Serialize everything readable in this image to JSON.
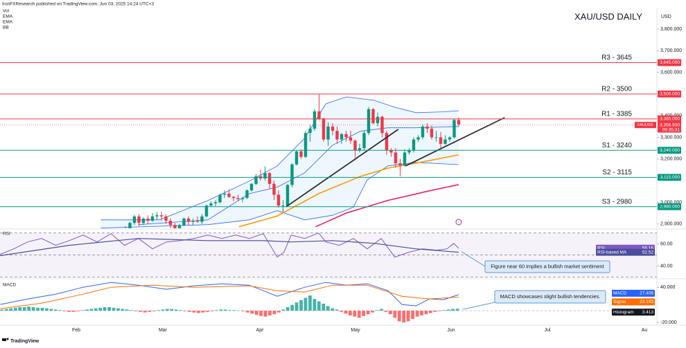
{
  "header": {
    "attribution": "IronFXResearch published on TradingView.com, Jun 03, 2025 14:24 UTC+3",
    "legend": [
      "Vol",
      "EMA",
      "EMA",
      "BB"
    ],
    "footer": "TradingView"
  },
  "chart_data": [
    {
      "type": "candlestick",
      "title": "XAU/USD DAILY",
      "currency": "USD",
      "symbol": "XAUUSD",
      "last_price": {
        "value": 3356.93,
        "label": "3,356.930"
      },
      "countdown": "09:35:31",
      "x_axis_labels": [
        "Feb",
        "Mar",
        "Apr",
        "May",
        "Jun",
        "Jul",
        "Au"
      ],
      "ylim": [
        2880,
        3934
      ],
      "yticks": [
        {
          "value": 3800,
          "label": "3,800.000"
        },
        {
          "value": 3700,
          "label": "3,700.000"
        },
        {
          "value": 3600,
          "label": "3,600.000"
        },
        {
          "value": 3400,
          "label": "3,400.000"
        },
        {
          "value": 3300,
          "label": "3,300.000"
        },
        {
          "value": 3200,
          "label": "3,200.000"
        },
        {
          "value": 3000,
          "label": "3,000.000"
        },
        {
          "value": 2900,
          "label": "2,900.000"
        }
      ],
      "colors": {
        "up": "#089981",
        "down": "#f23645"
      },
      "ohlc": [
        [
          2870,
          2890,
          2860,
          2880
        ],
        [
          2880,
          2910,
          2870,
          2905
        ],
        [
          2905,
          2942,
          2895,
          2935
        ],
        [
          2935,
          2945,
          2890,
          2905
        ],
        [
          2905,
          2930,
          2895,
          2925
        ],
        [
          2925,
          2940,
          2900,
          2915
        ],
        [
          2915,
          2950,
          2910,
          2935
        ],
        [
          2935,
          2955,
          2920,
          2940
        ],
        [
          2940,
          2956,
          2915,
          2935
        ],
        [
          2935,
          2945,
          2900,
          2915
        ],
        [
          2915,
          2925,
          2880,
          2895
        ],
        [
          2895,
          2905,
          2870,
          2880
        ],
        [
          2880,
          2900,
          2860,
          2895
        ],
        [
          2895,
          2930,
          2890,
          2925
        ],
        [
          2925,
          2935,
          2895,
          2910
        ],
        [
          2910,
          2925,
          2895,
          2915
        ],
        [
          2915,
          2935,
          2905,
          2910
        ],
        [
          2910,
          2945,
          2900,
          2935
        ],
        [
          2935,
          2990,
          2930,
          2985
        ],
        [
          2985,
          3005,
          2980,
          2995
        ],
        [
          2995,
          3010,
          2980,
          3000
        ],
        [
          3000,
          3040,
          2995,
          3035
        ],
        [
          3035,
          3055,
          3020,
          3040
        ],
        [
          3040,
          3060,
          3020,
          3025
        ],
        [
          3025,
          3030,
          3005,
          3020
        ],
        [
          3020,
          3035,
          3005,
          3015
        ],
        [
          3015,
          3025,
          3000,
          3020
        ],
        [
          3020,
          3060,
          3015,
          3055
        ],
        [
          3055,
          3090,
          3050,
          3085
        ],
        [
          3085,
          3130,
          3080,
          3120
        ],
        [
          3120,
          3150,
          3100,
          3110
        ],
        [
          3110,
          3165,
          3100,
          3135
        ],
        [
          3135,
          3140,
          3060,
          3085
        ],
        [
          3085,
          3100,
          3010,
          3035
        ],
        [
          3035,
          3055,
          2975,
          2985
        ],
        [
          2985,
          3010,
          2955,
          2985
        ],
        [
          2985,
          3085,
          2980,
          3080
        ],
        [
          3080,
          3180,
          3070,
          3175
        ],
        [
          3175,
          3240,
          3170,
          3235
        ],
        [
          3235,
          3245,
          3200,
          3210
        ],
        [
          3210,
          3330,
          3205,
          3320
        ],
        [
          3320,
          3360,
          3280,
          3340
        ],
        [
          3340,
          3430,
          3330,
          3420
        ],
        [
          3420,
          3500,
          3380,
          3385
        ],
        [
          3385,
          3390,
          3280,
          3290
        ],
        [
          3290,
          3370,
          3260,
          3350
        ],
        [
          3350,
          3365,
          3310,
          3330
        ],
        [
          3330,
          3350,
          3270,
          3290
        ],
        [
          3290,
          3320,
          3270,
          3315
        ],
        [
          3315,
          3330,
          3280,
          3300
        ],
        [
          3300,
          3330,
          3270,
          3285
        ],
        [
          3285,
          3290,
          3205,
          3240
        ],
        [
          3240,
          3270,
          3230,
          3250
        ],
        [
          3250,
          3330,
          3240,
          3320
        ],
        [
          3320,
          3440,
          3310,
          3430
        ],
        [
          3430,
          3435,
          3360,
          3365
        ],
        [
          3365,
          3415,
          3350,
          3395
        ],
        [
          3395,
          3400,
          3300,
          3320
        ],
        [
          3320,
          3330,
          3220,
          3240
        ],
        [
          3240,
          3250,
          3210,
          3230
        ],
        [
          3230,
          3250,
          3160,
          3180
        ],
        [
          3180,
          3200,
          3120,
          3170
        ],
        [
          3170,
          3245,
          3165,
          3230
        ],
        [
          3230,
          3250,
          3220,
          3240
        ],
        [
          3240,
          3300,
          3230,
          3290
        ],
        [
          3290,
          3310,
          3280,
          3300
        ],
        [
          3300,
          3360,
          3290,
          3350
        ],
        [
          3350,
          3365,
          3320,
          3340
        ],
        [
          3340,
          3355,
          3290,
          3300
        ],
        [
          3300,
          3330,
          3280,
          3300
        ],
        [
          3300,
          3325,
          3250,
          3270
        ],
        [
          3270,
          3310,
          3265,
          3290
        ],
        [
          3290,
          3305,
          3280,
          3300
        ],
        [
          3300,
          3385,
          3295,
          3380
        ],
        [
          3380,
          3392,
          3350,
          3360
        ]
      ],
      "levels": [
        {
          "label": "R3 - 3645",
          "value": 3645,
          "value_label": "3,645.000",
          "color": "#f23645"
        },
        {
          "label": "R2 - 3500",
          "value": 3500,
          "value_label": "3,500.000",
          "color": "#f23645"
        },
        {
          "label": "R1 - 3385",
          "value": 3385,
          "value_label": "3,385.000",
          "color": "#f23645"
        },
        {
          "label": "S1 - 3240",
          "value": 3240,
          "value_label": "3,240.000",
          "color": "#089981"
        },
        {
          "label": "S2 - 3115",
          "value": 3115,
          "value_label": "3,115.000",
          "color": "#089981"
        },
        {
          "label": "S3 - 2980",
          "value": 2980,
          "value_label": "2,980.000",
          "color": "#089981"
        }
      ],
      "bands": {
        "color": "#2962ff",
        "fill": "#2196f3",
        "upper": {
          "x": [
            -5.5,
            7.5,
            18.3,
            27.5,
            33.7,
            39.8,
            44.5,
            49.1,
            55.2,
            59.8,
            64.5,
            70.6,
            74
          ],
          "values": [
            2919,
            2919,
            3008,
            3098,
            3168,
            3296,
            3455,
            3487,
            3471,
            3439,
            3414,
            3418,
            3423
          ]
        },
        "middle": {
          "x": [
            2.9,
            18.3,
            27.5,
            33.7,
            39.8,
            46,
            52.2,
            58.3,
            64.5,
            74
          ],
          "values": [
            2897,
            2919,
            3040,
            3070,
            3136,
            3264,
            3328,
            3344,
            3344,
            3350
          ]
        },
        "lower": {
          "x": [
            -5.5,
            18.3,
            27.5,
            33.7,
            39.8,
            46,
            50.6,
            53.7,
            58.3,
            64.5,
            74
          ],
          "values": [
            2881,
            2897,
            2919,
            2961,
            2919,
            2940,
            2977,
            3104,
            3168,
            3184,
            3174
          ]
        }
      },
      "overlays": [
        {
          "color": "#ff9800",
          "x": [
            25.2,
            33.7,
            42.9,
            52.2,
            58.3,
            64.5,
            74
          ],
          "values": [
            2887,
            2937,
            3040,
            3120,
            3158,
            3181,
            3219
          ]
        },
        {
          "color": "#e91e63",
          "x": [
            42.2,
            49.1,
            58.3,
            67.5,
            74
          ],
          "values": [
            2887,
            2951,
            3009,
            3053,
            3082
          ]
        }
      ],
      "trendlines": [
        {
          "color": "#2a2e39",
          "x": [
            35.7,
            60.6
          ],
          "values": [
            2980,
            3337
          ]
        },
        {
          "color": "#2a2e39",
          "x": [
            62.2,
            84.2
          ],
          "values": [
            3168,
            3391
          ]
        }
      ]
    },
    {
      "type": "line",
      "title": "RSI",
      "ylim": [
        29,
        73
      ],
      "yticks": [
        {
          "value": 60,
          "label": "60.00"
        },
        {
          "value": 40,
          "label": "40.00"
        }
      ],
      "guides": [
        70,
        50,
        30
      ],
      "annotation": "Figure near 60 implies a bullish market sentiment",
      "series": [
        {
          "name": "RSI",
          "color": "#7e57c2",
          "x": [
            -27.8,
            -24.8,
            -21.7,
            -18.6,
            -15.5,
            -12.5,
            -9.4,
            -6.3,
            -3.2,
            -0.2,
            2.9,
            6,
            9.1,
            12.2,
            15.2,
            18.3,
            21.4,
            24.5,
            27.5,
            30.6,
            33.7,
            35.2,
            36.8,
            39.8,
            42.9,
            44.5,
            47.5,
            50.6,
            53.7,
            56.8,
            59.8,
            62.9,
            66,
            69.1,
            71.4,
            72.9,
            74
          ],
          "values": [
            50.6,
            55.6,
            61.9,
            65,
            58.8,
            63.1,
            68.1,
            61.9,
            69.4,
            58.8,
            65,
            55.6,
            61.9,
            63.1,
            65,
            68.1,
            65,
            68.1,
            65,
            69.4,
            48.1,
            52.5,
            68.1,
            65,
            70,
            61.9,
            58.8,
            65,
            55.6,
            65,
            48.1,
            52.5,
            55.6,
            54.4,
            55.6,
            60.6,
            56.16
          ]
        },
        {
          "name": "RSI-based MA",
          "color": "#4a4e9c",
          "x": [
            -27.8,
            -12.5,
            2.9,
            18.3,
            30.6,
            36.8,
            46,
            55.2,
            64.5,
            74
          ],
          "values": [
            49.4,
            58.8,
            65,
            63.1,
            63.1,
            61.9,
            63.1,
            60.6,
            55.6,
            52.52
          ]
        }
      ]
    },
    {
      "type": "macd",
      "title": "MACD",
      "ylim": [
        -27,
        52
      ],
      "yticks": [
        {
          "value": 40,
          "label": "40.000"
        },
        {
          "value": -20,
          "label": "-20.000"
        }
      ],
      "annotation": "MACD showcases slight bullish tendencies.",
      "series": [
        {
          "name": "MACD",
          "color": "#2962ff",
          "x": [
            -27.8,
            -21.7,
            -15.5,
            -9.4,
            -3.2,
            2.9,
            9.1,
            15.2,
            21.4,
            27.5,
            33.7,
            39.8,
            44.5,
            49.1,
            53.7,
            58.3,
            61.4,
            64.5,
            67.5,
            70.6,
            74
          ],
          "values": [
            10.6,
            20,
            28.2,
            40,
            48.2,
            43.5,
            36.5,
            42.4,
            45.9,
            43.5,
            24.7,
            40,
            48.2,
            43.5,
            45.9,
            34.1,
            10.6,
            8.2,
            20,
            18.8,
            27.406
          ]
        },
        {
          "name": "Signal",
          "color": "#ff6d00",
          "x": [
            -27.8,
            -18.6,
            -9.4,
            -3.2,
            6,
            15.2,
            27.5,
            33.7,
            39.8,
            46,
            53.7,
            61.4,
            67.5,
            74
          ],
          "values": [
            3.5,
            12.9,
            28.2,
            40,
            43.5,
            40,
            42.4,
            34.1,
            31.8,
            43.5,
            43.5,
            24.7,
            20,
            23.193
          ]
        }
      ],
      "histogram": {
        "name": "Histogram",
        "up_color": "#26a69a",
        "down_color": "#ff5252",
        "values": [
          2,
          3,
          4,
          5,
          6,
          6,
          7,
          6,
          5,
          5,
          4,
          3,
          2,
          1,
          -1,
          -2,
          -2,
          -1,
          1,
          2,
          3,
          4,
          5,
          6,
          6,
          5,
          4,
          3,
          2,
          1,
          -1,
          -2,
          -3,
          -2,
          -1,
          1,
          2,
          3,
          3,
          2,
          1,
          -1,
          -2,
          -3,
          -4,
          -3,
          -2,
          -1,
          1,
          2,
          2,
          1,
          1,
          0.5,
          -1,
          -3,
          -5,
          -7,
          -9,
          -10,
          -8,
          -6,
          -3,
          2,
          6,
          10,
          14,
          18,
          22,
          26,
          20,
          16,
          12,
          8,
          4,
          2,
          -2,
          -5,
          -8,
          -10,
          -12,
          -9,
          -6,
          -3,
          1,
          3,
          -2,
          -6,
          -12,
          -18,
          -20,
          -18,
          -14,
          -10,
          -8,
          -6,
          -4,
          -2,
          -1,
          1,
          2,
          3,
          3.413
        ]
      }
    }
  ]
}
